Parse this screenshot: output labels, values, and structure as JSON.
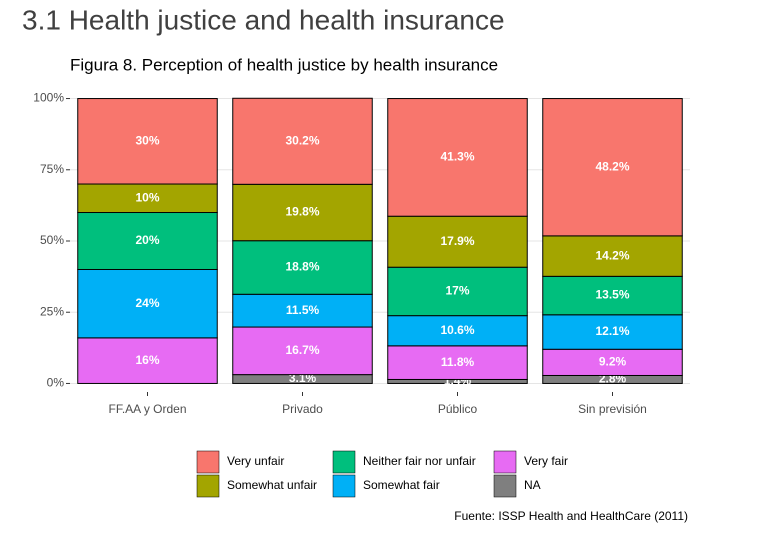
{
  "heading": "3.1 Health justice and health insurance",
  "chart_data": {
    "type": "stacked_bar",
    "title": "Figura 8. Perception of health justice by health insurance",
    "caption": "Fuente: ISSP Health and HealthCare (2011)",
    "categories": [
      "FF.AA y Orden",
      "Privado",
      "Público",
      "Sin previsión"
    ],
    "ylim": [
      -3,
      103
    ],
    "yticks": [
      {
        "value": 0,
        "label": "0%"
      },
      {
        "value": 25,
        "label": "25%"
      },
      {
        "value": 50,
        "label": "50%"
      },
      {
        "value": 75,
        "label": "75%"
      },
      {
        "value": 100,
        "label": "100%"
      }
    ],
    "grid": true,
    "series": [
      {
        "name": "Very unfair",
        "color": "#F8766D",
        "values": [
          30,
          30.2,
          41.3,
          48.2
        ],
        "value_labels": [
          "30%",
          "30.2%",
          "41.3%",
          "48.2%"
        ]
      },
      {
        "name": "Somewhat unfair",
        "color": "#A3A500",
        "values": [
          10,
          19.8,
          17.9,
          14.2
        ],
        "value_labels": [
          "10%",
          "19.8%",
          "17.9%",
          "14.2%"
        ]
      },
      {
        "name": "Neither fair nor unfair",
        "color": "#00BF7D",
        "values": [
          20,
          18.8,
          17,
          13.5
        ],
        "value_labels": [
          "20%",
          "18.8%",
          "17%",
          "13.5%"
        ]
      },
      {
        "name": "Somewhat fair",
        "color": "#00B0F6",
        "values": [
          24,
          11.5,
          10.6,
          12.1
        ],
        "value_labels": [
          "24%",
          "11.5%",
          "10.6%",
          "12.1%"
        ]
      },
      {
        "name": "Very fair",
        "color": "#E76BF3",
        "values": [
          16,
          16.7,
          11.8,
          9.2
        ],
        "value_labels": [
          "16%",
          "16.7%",
          "11.8%",
          "9.2%"
        ]
      },
      {
        "name": "NA",
        "color": "#7F7F7F",
        "values": [
          null,
          3.1,
          1.4,
          2.8
        ],
        "value_labels": [
          null,
          "3.1%",
          "1.4%",
          "2.8%"
        ]
      }
    ]
  }
}
